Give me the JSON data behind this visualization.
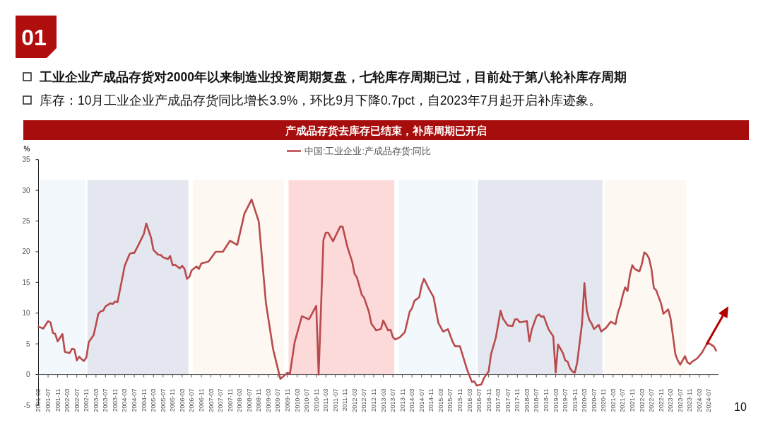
{
  "chart_data": {
    "type": "line",
    "title": "产成品存货去库存已结束，补库周期已开启",
    "ylabel": "%",
    "legend": "top",
    "annotations": [
      "工业企业产成品存货对2000年以来制造业投资周期复盘，七轮库存周期已过，目前处于第八轮补库存周期",
      "库存：10月工业企业产成品存货同比增长3.9%，环比9月下降0.7pct，自2023年7月起开启补库迹象。",
      "01",
      "10"
    ],
    "x": [
      "2001-03",
      "2001-05",
      "2001-07",
      "2001-08",
      "2001-09",
      "2001-10",
      "2001-11",
      "2002-01",
      "2002-02",
      "2002-04",
      "2002-05",
      "2002-06",
      "2002-07",
      "2002-08",
      "2002-09",
      "2002-10",
      "2002-11",
      "2002-12",
      "2003-02",
      "2003-03",
      "2003-04",
      "2003-05",
      "2003-06",
      "2003-07",
      "2003-09",
      "2003-10",
      "2003-11",
      "2003-12",
      "2004-03",
      "2004-05",
      "2004-06",
      "2004-07",
      "2004-09",
      "2004-11",
      "2004-12",
      "2005-02",
      "2005-03",
      "2005-05",
      "2005-06",
      "2005-07",
      "2005-09",
      "2005-10",
      "2005-11",
      "2005-12",
      "2006-02",
      "2006-03",
      "2006-04",
      "2006-05",
      "2006-06",
      "2006-07",
      "2006-09",
      "2006-10",
      "2006-11",
      "2007-01",
      "2007-02",
      "2007-05",
      "2007-08",
      "2007-11",
      "2008-02",
      "2008-05",
      "2008-08",
      "2008-11",
      "2009-02",
      "2009-05",
      "2009-08",
      "2009-11",
      "2009-12",
      "2010-02",
      "2010-05",
      "2010-08",
      "2010-11",
      "2010-12",
      "2011-02",
      "2011-03",
      "2011-04",
      "2011-06",
      "2011-09",
      "2011-10",
      "2011-12",
      "2012-02",
      "2012-03",
      "2012-04",
      "2012-06",
      "2012-07",
      "2012-09",
      "2012-10",
      "2012-12",
      "2013-02",
      "2013-03",
      "2013-05",
      "2013-06",
      "2013-07",
      "2013-08",
      "2013-10",
      "2013-12",
      "2014-02",
      "2014-03",
      "2014-04",
      "2014-06",
      "2014-07",
      "2014-08",
      "2014-10",
      "2014-12",
      "2015-02",
      "2015-04",
      "2015-06",
      "2015-08",
      "2015-09",
      "2015-11",
      "2016-02",
      "2016-04",
      "2016-05",
      "2016-06",
      "2016-08",
      "2016-09",
      "2016-11",
      "2016-12",
      "2017-02",
      "2017-04",
      "2017-05",
      "2017-07",
      "2017-09",
      "2017-10",
      "2017-11",
      "2017-12",
      "2018-03",
      "2018-04",
      "2018-05",
      "2018-07",
      "2018-08",
      "2018-09",
      "2018-10",
      "2018-12",
      "2019-02",
      "2019-03",
      "2019-04",
      "2019-06",
      "2019-07",
      "2019-08",
      "2019-09",
      "2019-10",
      "2019-11",
      "2019-12",
      "2020-02",
      "2020-03",
      "2020-04",
      "2020-05",
      "2020-06",
      "2020-07",
      "2020-09",
      "2020-10",
      "2020-12",
      "2021-02",
      "2021-04",
      "2021-05",
      "2021-06",
      "2021-07",
      "2021-08",
      "2021-09",
      "2021-10",
      "2021-11",
      "2021-12",
      "2022-02",
      "2022-03",
      "2022-04",
      "2022-05",
      "2022-06",
      "2022-07",
      "2022-08",
      "2022-09",
      "2022-11",
      "2022-12",
      "2023-02",
      "2023-03",
      "2023-05",
      "2023-06",
      "2023-07",
      "2023-09",
      "2023-10",
      "2023-11",
      "2023-12",
      "2024-02",
      "2024-04",
      "2024-06",
      "2024-07",
      "2024-09",
      "2024-10"
    ],
    "series": [
      {
        "name": "中国:工业企业:产成品存货:同比",
        "color": "#b94a4c",
        "values": [
          7.8,
          7.5,
          8.7,
          8.5,
          6.8,
          6.6,
          5.4,
          6.6,
          3.7,
          3.5,
          4.2,
          4.1,
          2.3,
          2.9,
          2.5,
          2.2,
          2.8,
          5.3,
          6.4,
          8.1,
          9.9,
          10.3,
          10.4,
          11.1,
          11.6,
          11.5,
          11.9,
          11.8,
          17.7,
          19.6,
          19.8,
          19.8,
          21.3,
          22.9,
          24.6,
          22.3,
          20.3,
          19.5,
          19.5,
          19.1,
          18.8,
          19.3,
          17.8,
          17.9,
          17.3,
          17.7,
          17.2,
          15.6,
          15.9,
          17.0,
          17.6,
          17.2,
          18.1,
          18.3,
          18.4,
          20.0,
          20.0,
          21.8,
          21.1,
          26.2,
          28.5,
          24.9,
          11.6,
          4.1,
          -0.7,
          0.3,
          0.1,
          5.3,
          9.5,
          9.0,
          11.2,
          0.0,
          21.9,
          23.1,
          23.1,
          21.7,
          24.1,
          24.1,
          20.8,
          18.4,
          16.4,
          15.8,
          13.0,
          12.5,
          10.2,
          8.3,
          7.2,
          7.4,
          8.8,
          7.2,
          7.3,
          6.1,
          5.7,
          6.1,
          6.9,
          10.2,
          10.8,
          12.0,
          12.6,
          14.5,
          15.6,
          14.0,
          12.6,
          8.4,
          7.0,
          7.4,
          5.3,
          4.6,
          4.6,
          0.8,
          -1.2,
          -1.1,
          -1.8,
          -1.6,
          -0.6,
          0.5,
          3.3,
          6.0,
          10.4,
          9.1,
          8.0,
          7.9,
          9.0,
          9.0,
          8.5,
          8.7,
          5.4,
          7.3,
          9.5,
          9.8,
          9.4,
          9.5,
          7.4,
          6.2,
          0.3,
          4.9,
          3.5,
          2.3,
          2.1,
          1.0,
          0.5,
          0.3,
          2.0,
          8.3,
          14.9,
          10.4,
          8.9,
          8.3,
          7.4,
          8.1,
          7.0,
          7.6,
          8.6,
          8.2,
          10.1,
          11.2,
          12.9,
          14.2,
          13.6,
          16.2,
          17.8,
          17.2,
          16.8,
          18.0,
          19.9,
          19.6,
          18.9,
          17.2,
          14.1,
          13.7,
          11.6,
          9.9,
          10.6,
          9.1,
          3.3,
          2.3,
          1.6,
          3.0,
          2.0,
          1.7,
          2.1,
          2.6,
          3.5,
          4.9,
          5.1,
          4.6,
          3.9
        ]
      }
    ],
    "xlim": [
      "2001-03",
      "2024-11"
    ],
    "xticks": [
      "2001-03",
      "2001-07",
      "2001-11",
      "2002-03",
      "2002-07",
      "2002-11",
      "2003-03",
      "2003-07",
      "2003-11",
      "2004-03",
      "2004-07",
      "2004-11",
      "2005-03",
      "2005-07",
      "2005-11",
      "2006-03",
      "2006-07",
      "2006-11",
      "2007-03",
      "2007-07",
      "2007-11",
      "2008-03",
      "2008-07",
      "2008-11",
      "2009-03",
      "2009-07",
      "2009-11",
      "2010-03",
      "2010-07",
      "2010-11",
      "2011-03",
      "2011-07",
      "2011-11",
      "2012-03",
      "2012-07",
      "2012-11",
      "2013-03",
      "2013-07",
      "2013-11",
      "2014-03",
      "2014-07",
      "2014-11",
      "2015-03",
      "2015-07",
      "2015-11",
      "2016-03",
      "2016-07",
      "2016-11",
      "2017-03",
      "2017-07",
      "2017-11",
      "2018-03",
      "2018-07",
      "2018-11",
      "2019-03",
      "2019-07",
      "2019-11",
      "2020-03",
      "2020-07",
      "2020-11",
      "2021-03",
      "2021-07",
      "2021-11",
      "2022-03",
      "2022-07",
      "2022-11",
      "2023-03",
      "2023-07",
      "2023-11",
      "2024-03",
      "2024-07"
    ],
    "ylim": [
      -5,
      35
    ],
    "yticks": [
      -5,
      0,
      5,
      10,
      15,
      20,
      25,
      30,
      35
    ],
    "bands": [
      {
        "axis": "x",
        "from": "2001-03",
        "to": "2002-11",
        "color": "#f2f8fc"
      },
      {
        "axis": "x",
        "from": "2002-11",
        "to": "2006-06",
        "color": "#e4e7ef"
      },
      {
        "axis": "x",
        "from": "2006-07",
        "to": "2009-10",
        "color": "#fdf8f2"
      },
      {
        "axis": "x",
        "from": "2009-11",
        "to": "2013-08",
        "color": "#fddada"
      },
      {
        "axis": "x",
        "from": "2013-09",
        "to": "2016-06",
        "color": "#f2f8fc"
      },
      {
        "axis": "x",
        "from": "2016-06",
        "to": "2020-11",
        "color": "#e4e7ef"
      },
      {
        "axis": "x",
        "from": "2020-11",
        "to": "2023-10",
        "color": "#fdf8f2"
      }
    ]
  }
}
